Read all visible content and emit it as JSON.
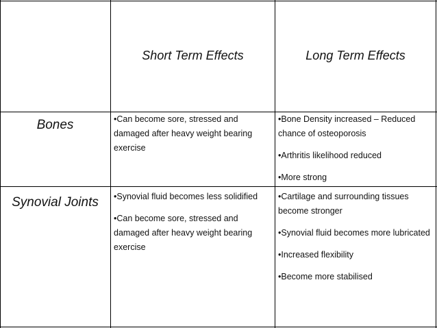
{
  "table": {
    "header": {
      "short_term": "Short Term Effects",
      "long_term": "Long Term Effects"
    },
    "rows": [
      {
        "label": "Bones",
        "short": [
          "•Can become sore, stressed and damaged after heavy weight bearing exercise"
        ],
        "long": [
          "•Bone Density increased – Reduced chance of osteoporosis",
          "•Arthritis likelihood reduced",
          "•More strong"
        ]
      },
      {
        "label": "Synovial Joints",
        "short": [
          "•Synovial fluid becomes less solidified",
          "•Can become sore, stressed and damaged after heavy weight bearing exercise"
        ],
        "long": [
          "•Cartilage and surrounding tissues become stronger",
          "•Synovial fluid becomes more lubricated",
          "•Increased flexibility",
          "•Become more stabilised"
        ]
      }
    ]
  }
}
